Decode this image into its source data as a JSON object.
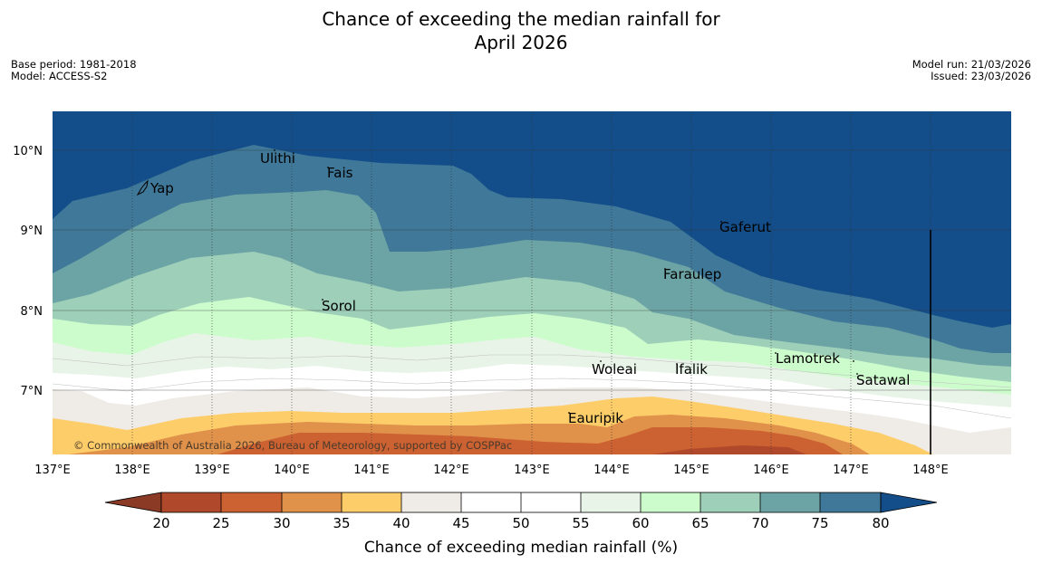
{
  "title_line1": "Chance of exceeding the median rainfall for",
  "title_line2": "April 2026",
  "base_period": "Base period: 1981-2018",
  "model": "Model: ACCESS-S2",
  "model_run": "Model run: 21/03/2026",
  "issued": "Issued: 23/03/2026",
  "copyright": "© Commonwealth of Australia 2026, Bureau of Meteorology, supported by COSPPac",
  "lon_labels": [
    "137°E",
    "138°E",
    "139°E",
    "140°E",
    "141°E",
    "142°E",
    "143°E",
    "144°E",
    "145°E",
    "146°E",
    "147°E",
    "148°E"
  ],
  "lat_labels": [
    "10°N",
    "9°N",
    "8°N",
    "7°N"
  ],
  "places": [
    {
      "name": "Yap"
    },
    {
      "name": "Ulithi"
    },
    {
      "name": "Fais"
    },
    {
      "name": "Gaferut"
    },
    {
      "name": "Faraulep"
    },
    {
      "name": "Sorol"
    },
    {
      "name": "Lamotrek"
    },
    {
      "name": "Satawal"
    },
    {
      "name": "Woleai"
    },
    {
      "name": "Ifalik"
    },
    {
      "name": "Eauripik"
    }
  ],
  "colorbar": {
    "title": "Chance of exceeding median rainfall (%)",
    "ticks": [
      "20",
      "25",
      "30",
      "35",
      "40",
      "45",
      "50",
      "55",
      "60",
      "65",
      "70",
      "75",
      "80"
    ],
    "colors": {
      "below20": "#8a3a25",
      "20_25": "#b0492b",
      "25_30": "#cc6132",
      "30_35": "#e0914a",
      "35_40": "#fdcd6a",
      "40_45": "#efebe6",
      "45_50": "#ffffff",
      "50_55": "#ffffff",
      "55_60": "#e9f4e8",
      "60_65": "#ccfccc",
      "65_70": "#9dcfb9",
      "70_75": "#6ca3a4",
      "75_80": "#3f7898",
      "above80": "#134e8a"
    }
  }
}
